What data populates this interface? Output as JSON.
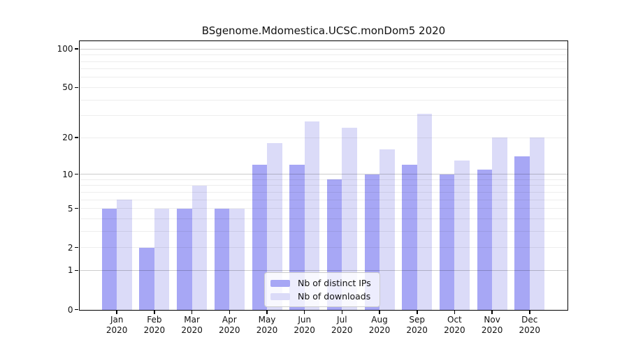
{
  "title": "BSgenome.Mdomestica.UCSC.monDom5 2020",
  "chart_data": {
    "type": "bar",
    "title": "BSgenome.Mdomestica.UCSC.monDom5 2020",
    "categories": [
      "Jan",
      "Feb",
      "Mar",
      "Apr",
      "May",
      "Jun",
      "Jul",
      "Aug",
      "Sep",
      "Oct",
      "Nov",
      "Dec"
    ],
    "category_year": "2020",
    "series": [
      {
        "name": "Nb of distinct IPs",
        "color": "#a7a7f5",
        "values": [
          5,
          2,
          5,
          5,
          12,
          12,
          9,
          10,
          12,
          10,
          11,
          14
        ]
      },
      {
        "name": "Nb of downloads",
        "color": "#dbdbf8",
        "values": [
          6,
          5,
          8,
          5,
          18,
          27,
          24,
          16,
          31,
          13,
          20,
          20
        ]
      }
    ],
    "yscale": "log1p",
    "ylim": [
      0,
      114
    ],
    "yticks": [
      0,
      1,
      2,
      5,
      10,
      20,
      50,
      100
    ],
    "grid": {
      "on": true,
      "major_ticks": [
        1,
        10,
        100
      ],
      "minor_ticks": [
        2,
        3,
        4,
        5,
        6,
        7,
        8,
        9,
        20,
        30,
        40,
        50,
        60,
        70,
        80,
        90
      ]
    },
    "legend_position": "lower-center-inside"
  },
  "colors": {
    "background": "#ffffff",
    "axis": "#000000",
    "text": "#111111",
    "bar_distinct_ips": "#a7a7f5",
    "bar_downloads": "#dbdbf8",
    "grid_major": "#cccccc",
    "grid_minor": "#ededed",
    "legend_border": "#cccccc"
  }
}
